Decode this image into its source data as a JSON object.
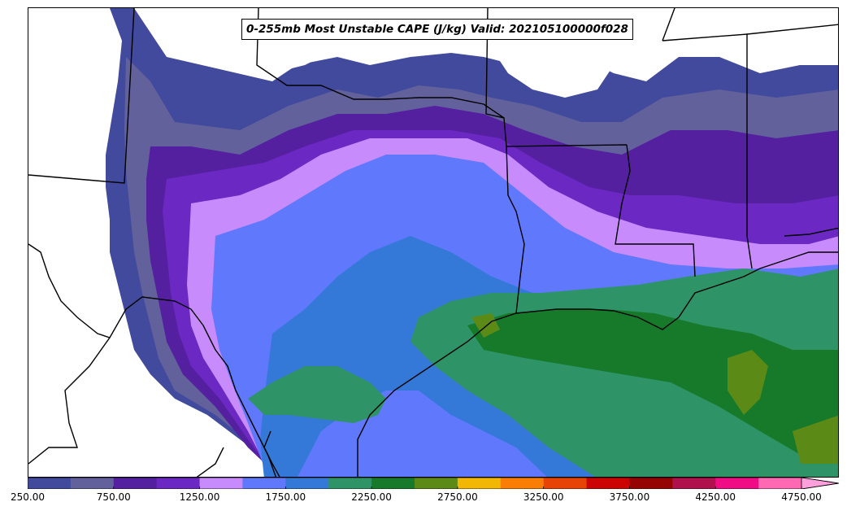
{
  "title": "0-255mb Most Unstable CAPE (J/kg) Valid: 202105100000f028",
  "colorbar": {
    "levels": [
      250,
      500,
      750,
      1000,
      1250,
      1500,
      1750,
      2000,
      2250,
      2500,
      2750,
      3000,
      3250,
      3500,
      3750,
      4000,
      4250,
      4500,
      4750
    ],
    "colors": [
      "#414a9c",
      "#62619c",
      "#5420a0",
      "#6b28c2",
      "#c88bfc",
      "#6078fc",
      "#3579d8",
      "#2e9467",
      "#177a2a",
      "#5c8a17",
      "#f2b705",
      "#fa7e05",
      "#e84306",
      "#cc0303",
      "#960303",
      "#b0104c",
      "#f00c84",
      "#ff69b4"
    ],
    "extend_color": "#ffa0dc",
    "tick_labels": [
      "250.00",
      "750.00",
      "1250.00",
      "1750.00",
      "2250.00",
      "2750.00",
      "3250.00",
      "3750.00",
      "4250.00",
      "4750.00"
    ],
    "tick_levels": [
      250,
      750,
      1250,
      1750,
      2250,
      2750,
      3250,
      3750,
      4250,
      4750
    ]
  }
}
